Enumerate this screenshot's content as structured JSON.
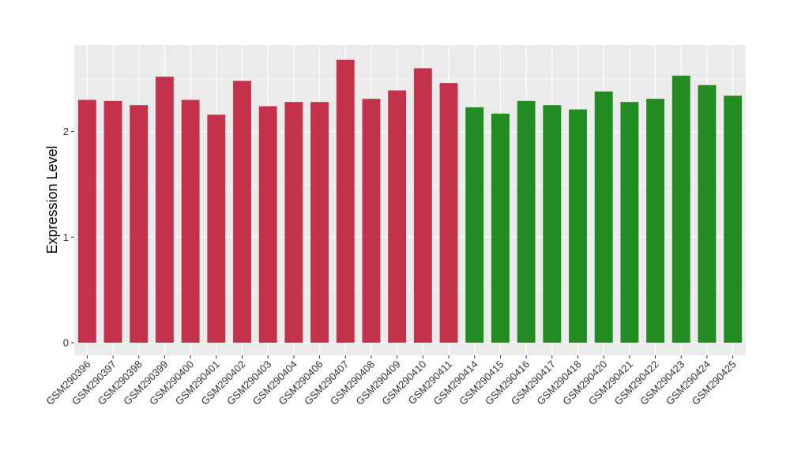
{
  "chart_data": {
    "type": "bar",
    "title": "",
    "xlabel": "",
    "ylabel": "Expression Level",
    "ylim": [
      -0.12,
      2.82
    ],
    "yticks": [
      0,
      1,
      2
    ],
    "grid": true,
    "legend": "none",
    "categories": [
      "GSM290396",
      "GSM290397",
      "GSM290398",
      "GSM290399",
      "GSM290400",
      "GSM290401",
      "GSM290402",
      "GSM290403",
      "GSM290404",
      "GSM290406",
      "GSM290407",
      "GSM290408",
      "GSM290409",
      "GSM290410",
      "GSM290411",
      "GSM290414",
      "GSM290415",
      "GSM290416",
      "GSM290417",
      "GSM290418",
      "GSM290420",
      "GSM290421",
      "GSM290422",
      "GSM290423",
      "GSM290424",
      "GSM290425"
    ],
    "values": [
      2.3,
      2.29,
      2.25,
      2.52,
      2.3,
      2.16,
      2.48,
      2.24,
      2.28,
      2.28,
      2.68,
      2.31,
      2.39,
      2.6,
      2.46,
      2.23,
      2.17,
      2.29,
      2.25,
      2.21,
      2.38,
      2.28,
      2.31,
      2.53,
      2.44,
      2.34
    ],
    "bar_colors": [
      "#c3314a",
      "#c3314a",
      "#c3314a",
      "#c3314a",
      "#c3314a",
      "#c3314a",
      "#c3314a",
      "#c3314a",
      "#c3314a",
      "#c3314a",
      "#c3314a",
      "#c3314a",
      "#c3314a",
      "#c3314a",
      "#c3314a",
      "#228b22",
      "#228b22",
      "#228b22",
      "#228b22",
      "#228b22",
      "#228b22",
      "#228b22",
      "#228b22",
      "#228b22",
      "#228b22",
      "#228b22"
    ],
    "panel_background": "#ebebeb",
    "gridline_color": "#ffffff"
  }
}
